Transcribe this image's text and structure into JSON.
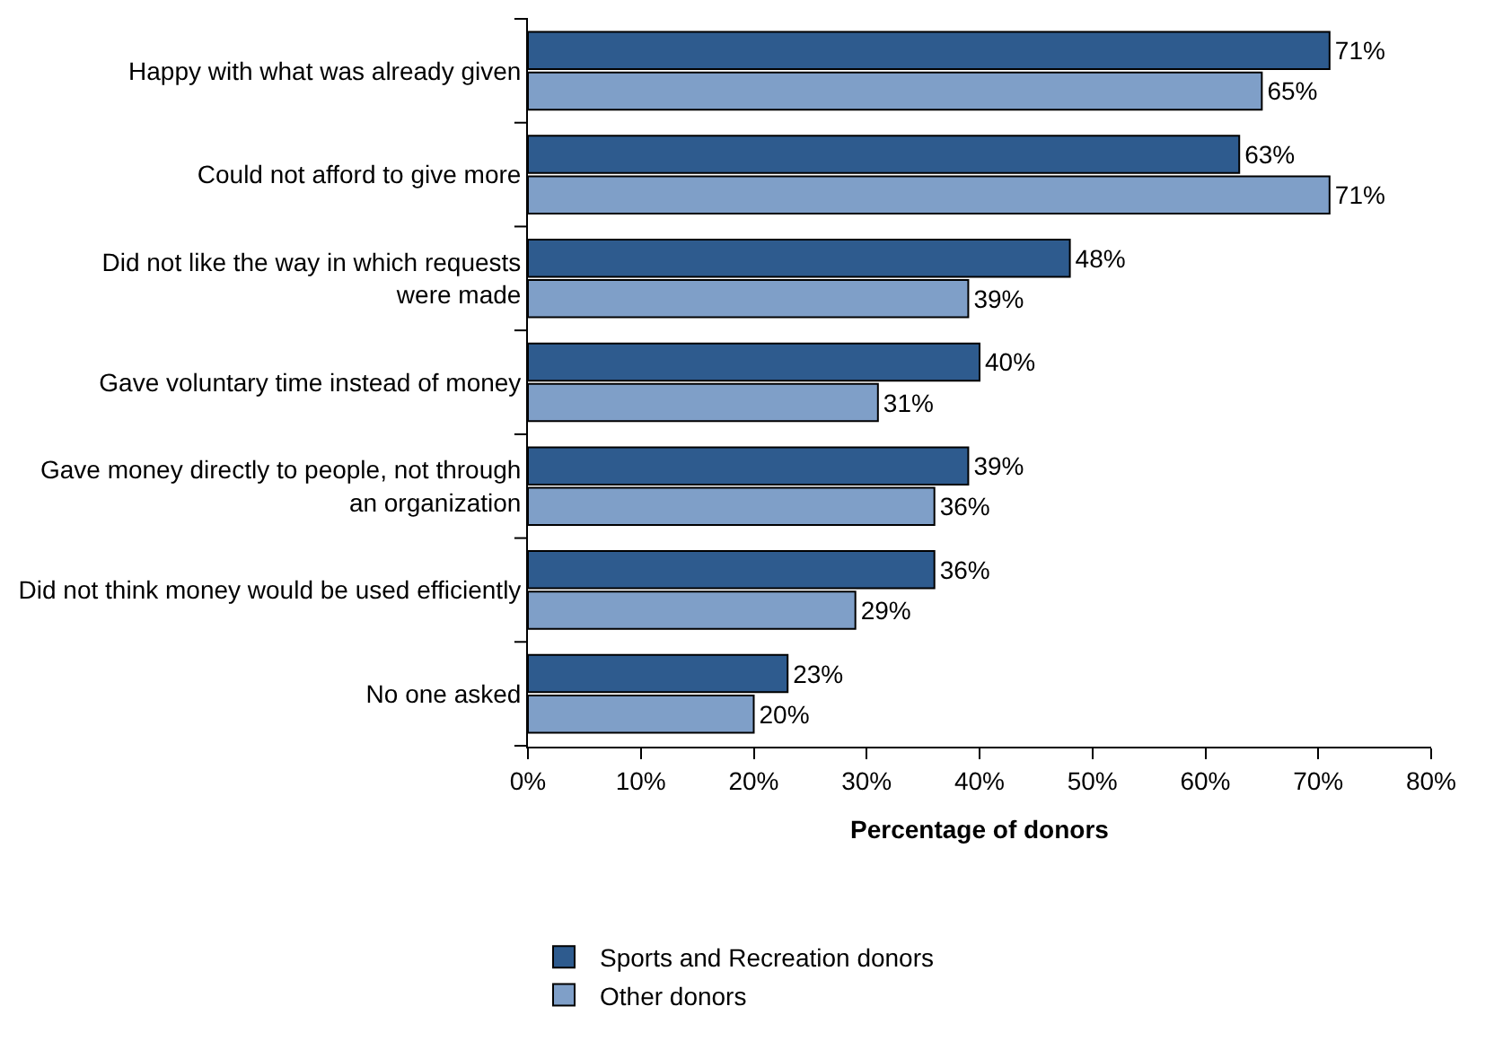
{
  "chart_data": {
    "type": "bar",
    "orientation": "horizontal",
    "xlabel": "Percentage of donors",
    "categories": [
      "Happy with what was already given",
      "Could not afford to give more",
      "Did not like the way in which requests\nwere made",
      "Gave voluntary time instead of money",
      "Gave money directly to people, not through\nan organization",
      "Did not think money would be used efficiently",
      "No one asked"
    ],
    "series": [
      {
        "name": "Sports and Recreation donors",
        "color": "#2e5b8e",
        "values": [
          71,
          63,
          48,
          40,
          39,
          36,
          23
        ],
        "value_labels": [
          "71%",
          "63%",
          "48%",
          "40%",
          "39%",
          "36%",
          "23%"
        ]
      },
      {
        "name": "Other donors",
        "color": "#7f9fc8",
        "values": [
          65,
          71,
          39,
          31,
          36,
          29,
          20
        ],
        "value_labels": [
          "65%",
          "71%",
          "39%",
          "31%",
          "36%",
          "29%",
          "20%"
        ]
      }
    ],
    "xlim": [
      0,
      80
    ],
    "xticks": [
      {
        "value": 0,
        "label": "0%"
      },
      {
        "value": 10,
        "label": "10%"
      },
      {
        "value": 20,
        "label": "20%"
      },
      {
        "value": 30,
        "label": "30%"
      },
      {
        "value": 40,
        "label": "40%"
      },
      {
        "value": 50,
        "label": "50%"
      },
      {
        "value": 60,
        "label": "60%"
      },
      {
        "value": 70,
        "label": "70%"
      },
      {
        "value": 80,
        "label": "80%"
      }
    ],
    "grid": false,
    "legend": "bottom"
  }
}
